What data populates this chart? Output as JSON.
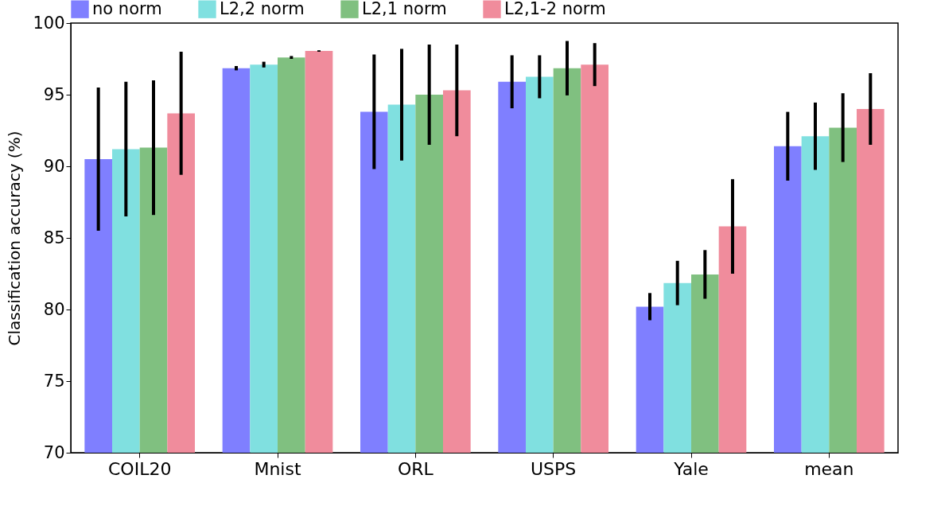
{
  "chart_data": {
    "type": "bar",
    "ylabel": "Classification accuracy (%)",
    "categories": [
      "COIL20",
      "Mnist",
      "ORL",
      "USPS",
      "Yale",
      "mean"
    ],
    "series": [
      {
        "name": "no norm",
        "color": "#7f7fff",
        "values": [
          90.5,
          96.85,
          93.8,
          95.9,
          80.2,
          91.4
        ],
        "errors": [
          5.0,
          0.15,
          4.0,
          1.85,
          0.95,
          2.4
        ]
      },
      {
        "name": "L2,2 norm",
        "color": "#80e0e0",
        "values": [
          91.2,
          97.1,
          94.3,
          96.25,
          81.85,
          92.1
        ],
        "errors": [
          4.7,
          0.2,
          3.9,
          1.5,
          1.55,
          2.35
        ]
      },
      {
        "name": "L2,1 norm",
        "color": "#80c080",
        "values": [
          91.3,
          97.6,
          95.0,
          96.85,
          82.45,
          92.7
        ],
        "errors": [
          4.7,
          0.1,
          3.5,
          1.9,
          1.7,
          2.4
        ]
      },
      {
        "name": "L2,1-2 norm",
        "color": "#f08c9c",
        "values": [
          93.7,
          98.05,
          95.3,
          97.1,
          85.8,
          94.0
        ],
        "errors": [
          4.3,
          0.05,
          3.2,
          1.5,
          3.3,
          2.5
        ]
      }
    ],
    "ylim": [
      70,
      100
    ],
    "yticks": [
      70,
      75,
      80,
      85,
      90,
      95,
      100
    ],
    "grid": false,
    "legend": "top"
  }
}
